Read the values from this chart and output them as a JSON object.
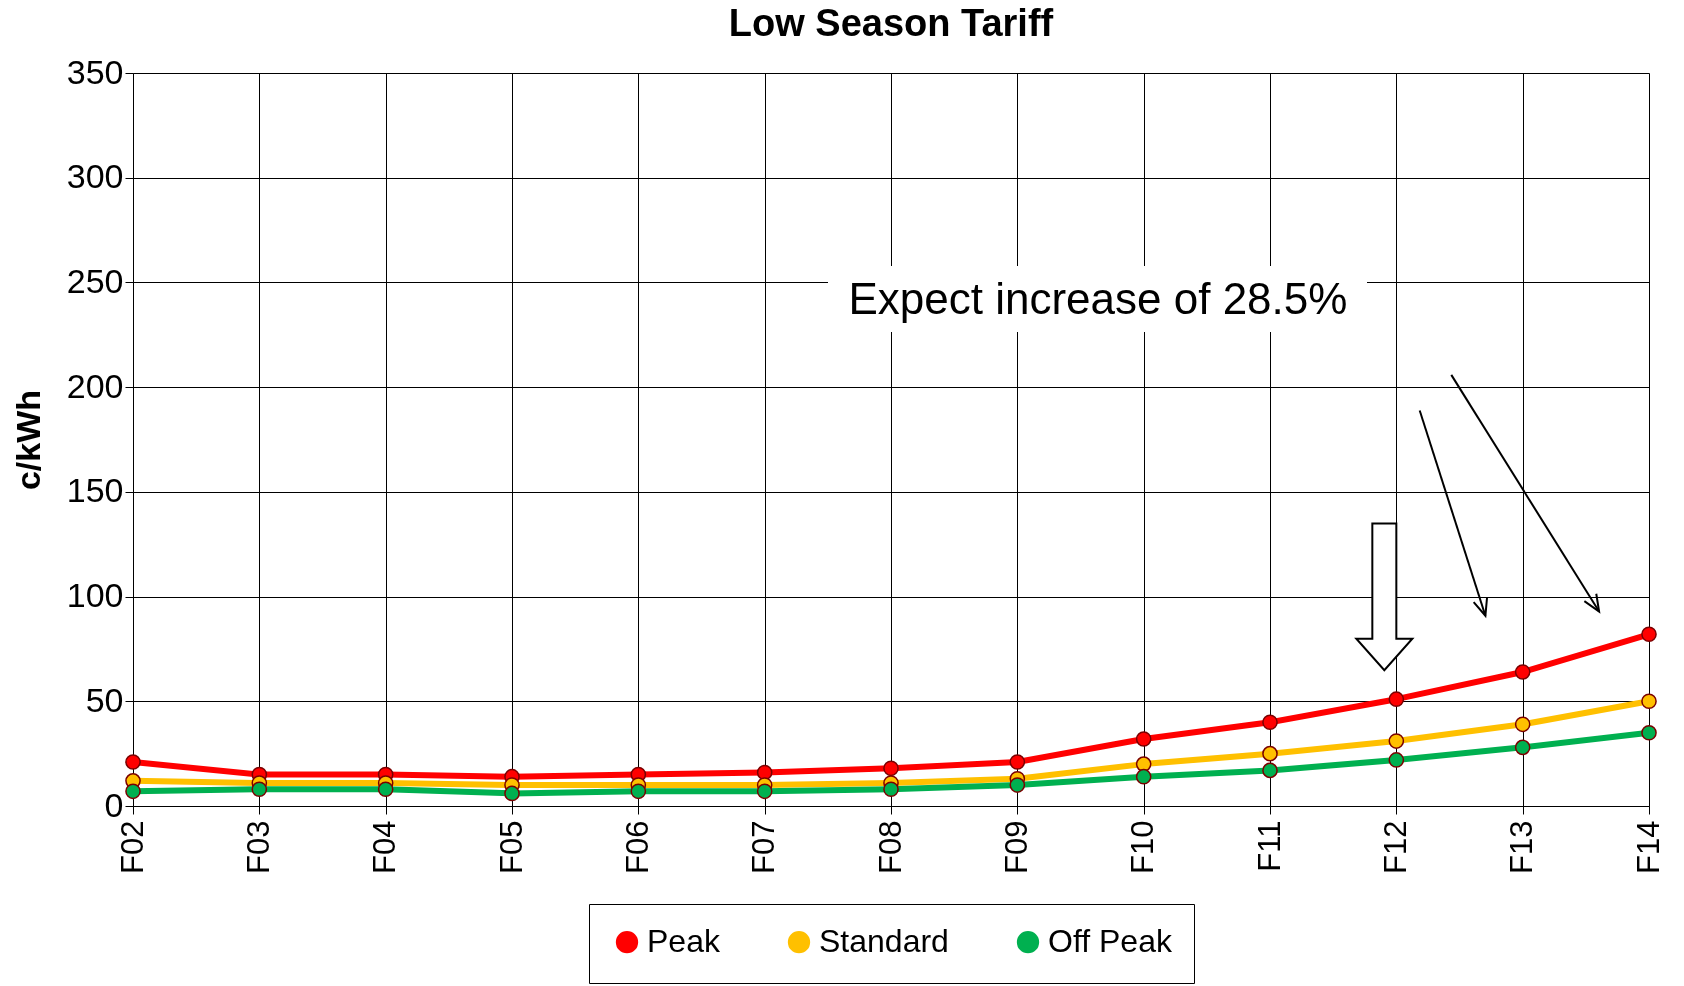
{
  "chart_data": {
    "type": "line",
    "title": "Low Season Tariff",
    "ylabel": "c/kWh",
    "categories": [
      "F02",
      "F03",
      "F04",
      "F05",
      "F06",
      "F07",
      "F08",
      "F09",
      "F10",
      "F11",
      "F12",
      "F13",
      "F14"
    ],
    "series": [
      {
        "name": "Peak",
        "color": "#ff0000",
        "values": [
          21,
          15,
          15,
          14,
          15,
          16,
          18,
          21,
          32,
          40,
          51,
          64,
          82
        ]
      },
      {
        "name": "Standard",
        "color": "#ffc000",
        "values": [
          12,
          11,
          11,
          10,
          10,
          10,
          11,
          13,
          20,
          25,
          31,
          39,
          50
        ]
      },
      {
        "name": "Off Peak",
        "color": "#00b050",
        "values": [
          7,
          8,
          8,
          6,
          7,
          7,
          8,
          10,
          14,
          17,
          22,
          28,
          35
        ]
      }
    ],
    "ylim": [
      0,
      350
    ],
    "yticks": [
      0,
      50,
      100,
      150,
      200,
      250,
      300,
      350
    ],
    "grid": true,
    "legend": "bottom",
    "marker": "circle",
    "line_style": "solid",
    "annotations": [
      "Expect increase of 28.5%"
    ]
  }
}
